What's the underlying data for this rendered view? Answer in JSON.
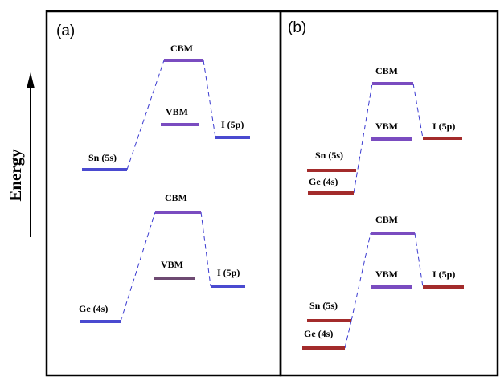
{
  "axis": {
    "label": "Energy"
  },
  "panels": [
    {
      "label": "(a)",
      "groups": [
        {
          "left": {
            "label": "Sn (5s)",
            "color": "#4a4ad0"
          },
          "cbm": {
            "label": "CBM",
            "color": "#7a4cc0"
          },
          "vbm": {
            "label": "VBM",
            "color": "#7a4cc0"
          },
          "right": {
            "label": "I (5p)",
            "color": "#4a4ad0"
          }
        },
        {
          "left": {
            "label": "Ge (4s)",
            "color": "#4a4ad0"
          },
          "cbm": {
            "label": "CBM",
            "color": "#7a4cc0"
          },
          "vbm": {
            "label": "VBM",
            "color": "#6e4a72"
          },
          "right": {
            "label": "I (5p)",
            "color": "#4a4ad0"
          }
        }
      ]
    },
    {
      "label": "(b)",
      "groups": [
        {
          "left_top": {
            "label": "Sn (5s)",
            "color": "#a32b2b"
          },
          "left_bottom": {
            "label": "Ge (4s)",
            "color": "#a32b2b"
          },
          "cbm": {
            "label": "CBM",
            "color": "#7a4cc0"
          },
          "vbm": {
            "label": "VBM",
            "color": "#7a4cc0"
          },
          "right": {
            "label": "I (5p)",
            "color": "#a32b2b"
          }
        },
        {
          "left_top": {
            "label": "Sn (5s)",
            "color": "#a32b2b"
          },
          "left_bottom": {
            "label": "Ge (4s)",
            "color": "#a32b2b"
          },
          "cbm": {
            "label": "CBM",
            "color": "#7a4cc0"
          },
          "vbm": {
            "label": "VBM",
            "color": "#7a4cc0"
          },
          "right": {
            "label": "I (5p)",
            "color": "#a32b2b"
          }
        }
      ]
    }
  ]
}
